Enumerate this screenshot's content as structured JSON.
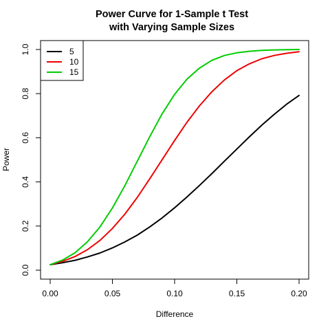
{
  "chart_data": {
    "type": "line",
    "title": [
      "Power Curve for 1-Sample t Test",
      "with Varying Sample Sizes"
    ],
    "xlabel": "Difference",
    "ylabel": "Power",
    "xlim": [
      0.0,
      0.2
    ],
    "ylim": [
      0.0,
      1.0
    ],
    "x_ticks": [
      0.0,
      0.05,
      0.1,
      0.15,
      0.2
    ],
    "x_tick_labels": [
      "0.00",
      "0.05",
      "0.10",
      "0.15",
      "0.20"
    ],
    "y_ticks": [
      0.0,
      0.2,
      0.4,
      0.6,
      0.8,
      1.0
    ],
    "y_tick_labels": [
      "0.0",
      "0.2",
      "0.4",
      "0.6",
      "0.8",
      "1.0"
    ],
    "grid": false,
    "legend_position": "top-left",
    "x": [
      0.0,
      0.01,
      0.02,
      0.03,
      0.04,
      0.05,
      0.06,
      0.07,
      0.08,
      0.09,
      0.1,
      0.11,
      0.12,
      0.13,
      0.14,
      0.15,
      0.16,
      0.17,
      0.18,
      0.19,
      0.2
    ],
    "series": [
      {
        "name": "5",
        "color": "#000000",
        "values": [
          0.025,
          0.034,
          0.045,
          0.06,
          0.078,
          0.101,
          0.128,
          0.159,
          0.196,
          0.237,
          0.283,
          0.332,
          0.384,
          0.438,
          0.494,
          0.549,
          0.604,
          0.657,
          0.706,
          0.752,
          0.792
        ]
      },
      {
        "name": "10",
        "color": "#ee0000",
        "values": [
          0.025,
          0.04,
          0.062,
          0.093,
          0.135,
          0.189,
          0.254,
          0.33,
          0.414,
          0.501,
          0.588,
          0.671,
          0.745,
          0.809,
          0.862,
          0.904,
          0.935,
          0.958,
          0.973,
          0.983,
          0.99
        ]
      },
      {
        "name": "15",
        "color": "#00cc00",
        "values": [
          0.025,
          0.046,
          0.079,
          0.129,
          0.196,
          0.282,
          0.383,
          0.494,
          0.605,
          0.709,
          0.797,
          0.866,
          0.916,
          0.951,
          0.973,
          0.985,
          0.992,
          0.996,
          0.998,
          0.999,
          1.0
        ]
      }
    ]
  }
}
